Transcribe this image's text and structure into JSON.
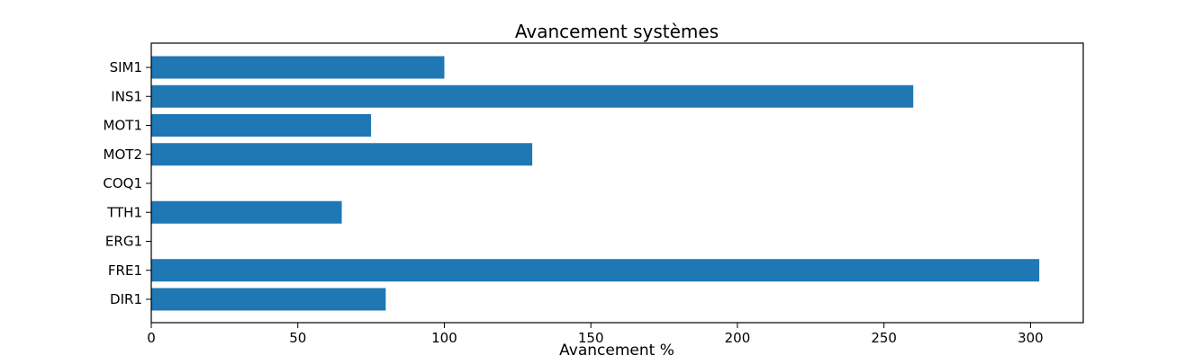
{
  "chart_data": {
    "type": "bar",
    "orientation": "horizontal",
    "title": "Avancement systèmes",
    "xlabel": "Avancement %",
    "ylabel": "",
    "categories": [
      "SIM1",
      "INS1",
      "MOT1",
      "MOT2",
      "COQ1",
      "TTH1",
      "ERG1",
      "FRE1",
      "DIR1"
    ],
    "values": [
      100,
      260,
      75,
      130,
      0,
      65,
      0,
      303,
      80
    ],
    "xlim": [
      0,
      318
    ],
    "xticks": [
      0,
      50,
      100,
      150,
      200,
      250,
      300
    ],
    "grid": false,
    "legend": "none",
    "bar_color": "#1f77b4"
  }
}
